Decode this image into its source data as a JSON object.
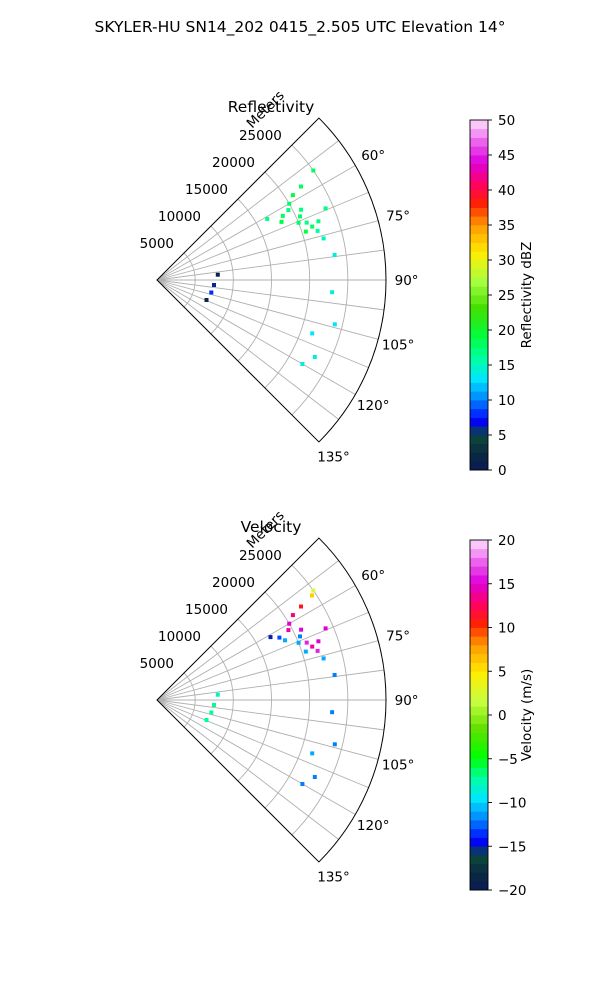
{
  "figure": {
    "suptitle": "SKYLER-HU  SN14_202  0415_2.505 UTC Elevation 14°"
  },
  "chart_data": [
    {
      "type": "heatmap",
      "projection": "polar-sector",
      "title": "Reflectivity",
      "range_label": "Meters",
      "range_ticks": [
        5000,
        10000,
        15000,
        20000,
        25000
      ],
      "range_lim": [
        0,
        30000
      ],
      "azimuth_lim": [
        45,
        135
      ],
      "azimuth_ticks": [
        "60°",
        "75°",
        "90°",
        "105°",
        "120°",
        "135°"
      ],
      "grid": true,
      "colorbar": {
        "label": "Reflectivity dBZ",
        "min": 0,
        "max": 50,
        "ticks": [
          "0",
          "5",
          "10",
          "15",
          "20",
          "25",
          "30",
          "35",
          "40",
          "45",
          "50"
        ]
      },
      "echoes": [
        {
          "az": 55,
          "r": 25000,
          "value": 18
        },
        {
          "az": 57,
          "r": 22500,
          "value": 18
        },
        {
          "az": 58,
          "r": 21000,
          "value": 19
        },
        {
          "az": 60,
          "r": 20000,
          "value": 18
        },
        {
          "az": 62,
          "r": 19500,
          "value": 17
        },
        {
          "az": 63,
          "r": 18500,
          "value": 18
        },
        {
          "az": 65,
          "r": 18000,
          "value": 19
        },
        {
          "az": 64,
          "r": 21000,
          "value": 17
        },
        {
          "az": 66,
          "r": 20500,
          "value": 18
        },
        {
          "az": 68,
          "r": 20000,
          "value": 18
        },
        {
          "az": 69,
          "r": 21000,
          "value": 17
        },
        {
          "az": 71,
          "r": 21500,
          "value": 18
        },
        {
          "az": 72,
          "r": 20500,
          "value": 19
        },
        {
          "az": 70,
          "r": 22500,
          "value": 17
        },
        {
          "az": 73,
          "r": 22000,
          "value": 16
        },
        {
          "az": 61,
          "r": 16500,
          "value": 17
        },
        {
          "az": 67,
          "r": 24000,
          "value": 17
        },
        {
          "az": 76,
          "r": 22500,
          "value": 15
        },
        {
          "az": 82,
          "r": 23500,
          "value": 14
        },
        {
          "az": 94,
          "r": 23000,
          "value": 14
        },
        {
          "az": 104,
          "r": 24000,
          "value": 13
        },
        {
          "az": 109,
          "r": 21500,
          "value": 13
        },
        {
          "az": 116,
          "r": 23000,
          "value": 14
        },
        {
          "az": 120,
          "r": 22000,
          "value": 14
        },
        {
          "az": 85,
          "r": 8000,
          "value": 1
        },
        {
          "az": 95,
          "r": 7500,
          "value": 6
        },
        {
          "az": 103,
          "r": 7300,
          "value": 8
        },
        {
          "az": 112,
          "r": 7000,
          "value": 2
        }
      ]
    },
    {
      "type": "heatmap",
      "projection": "polar-sector",
      "title": "Velocity",
      "range_label": "Meters",
      "range_ticks": [
        5000,
        10000,
        15000,
        20000,
        25000
      ],
      "range_lim": [
        0,
        30000
      ],
      "azimuth_lim": [
        45,
        135
      ],
      "azimuth_ticks": [
        "60°",
        "75°",
        "90°",
        "105°",
        "120°",
        "135°"
      ],
      "grid": true,
      "colorbar": {
        "label": "Velocity (m/s)",
        "min": -20,
        "max": 20,
        "ticks": [
          "−20",
          "−15",
          "−10",
          "−5",
          "0",
          "5",
          "10",
          "15",
          "20"
        ]
      },
      "echoes": [
        {
          "az": 55,
          "r": 25000,
          "value": 2
        },
        {
          "az": 56,
          "r": 24500,
          "value": 6
        },
        {
          "az": 57,
          "r": 22500,
          "value": 11
        },
        {
          "az": 58,
          "r": 21000,
          "value": 13
        },
        {
          "az": 60,
          "r": 20000,
          "value": 15
        },
        {
          "az": 62,
          "r": 19500,
          "value": 14
        },
        {
          "az": 61,
          "r": 17000,
          "value": -15
        },
        {
          "az": 63,
          "r": 18000,
          "value": -13
        },
        {
          "az": 65,
          "r": 18500,
          "value": -11
        },
        {
          "az": 64,
          "r": 21000,
          "value": 15
        },
        {
          "az": 66,
          "r": 20500,
          "value": -12
        },
        {
          "az": 68,
          "r": 20000,
          "value": -11
        },
        {
          "az": 69,
          "r": 21000,
          "value": 16
        },
        {
          "az": 71,
          "r": 21500,
          "value": 14
        },
        {
          "az": 72,
          "r": 20500,
          "value": -11
        },
        {
          "az": 70,
          "r": 22500,
          "value": 15
        },
        {
          "az": 73,
          "r": 22000,
          "value": 16
        },
        {
          "az": 67,
          "r": 24000,
          "value": 15
        },
        {
          "az": 76,
          "r": 22500,
          "value": -11
        },
        {
          "az": 82,
          "r": 23500,
          "value": -12
        },
        {
          "az": 94,
          "r": 23000,
          "value": -12
        },
        {
          "az": 104,
          "r": 24000,
          "value": -12
        },
        {
          "az": 109,
          "r": 21500,
          "value": -11
        },
        {
          "az": 116,
          "r": 23000,
          "value": -12
        },
        {
          "az": 120,
          "r": 22000,
          "value": -12
        },
        {
          "az": 85,
          "r": 8000,
          "value": -8
        },
        {
          "az": 95,
          "r": 7500,
          "value": -7
        },
        {
          "az": 103,
          "r": 7300,
          "value": -7
        },
        {
          "az": 112,
          "r": 7000,
          "value": -7
        }
      ]
    }
  ]
}
